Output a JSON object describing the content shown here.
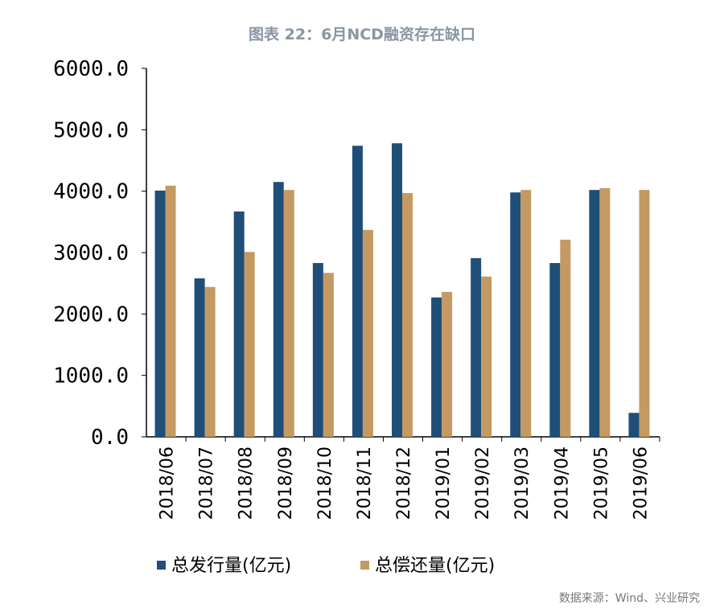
{
  "title": "图表 22：6月NCD融资存在缺口",
  "source": "数据来源：Wind、兴业研究",
  "chart_data": {
    "type": "bar",
    "title": "图表 22：6月NCD融资存在缺口",
    "categories": [
      "2018/06",
      "2018/07",
      "2018/08",
      "2018/09",
      "2018/10",
      "2018/11",
      "2018/12",
      "2019/01",
      "2019/02",
      "2019/03",
      "2019/04",
      "2019/05",
      "2019/06"
    ],
    "series": [
      {
        "name": "总发行量(亿元)",
        "color": "#1f4e79",
        "values": [
          4010,
          2580,
          3670,
          4150,
          2830,
          4740,
          4780,
          2270,
          2910,
          3980,
          2830,
          4020,
          390
        ]
      },
      {
        "name": "总偿还量(亿元)",
        "color": "#c49a62",
        "values": [
          4090,
          2440,
          3010,
          4020,
          2670,
          3370,
          3970,
          2360,
          2610,
          4020,
          3210,
          4050,
          4020
        ]
      }
    ],
    "yticks": [
      "0.0",
      "1000.0",
      "2000.0",
      "3000.0",
      "4000.0",
      "5000.0",
      "6000.0"
    ],
    "ylim": [
      0,
      6000
    ],
    "grid": false,
    "legend": "bottom"
  }
}
